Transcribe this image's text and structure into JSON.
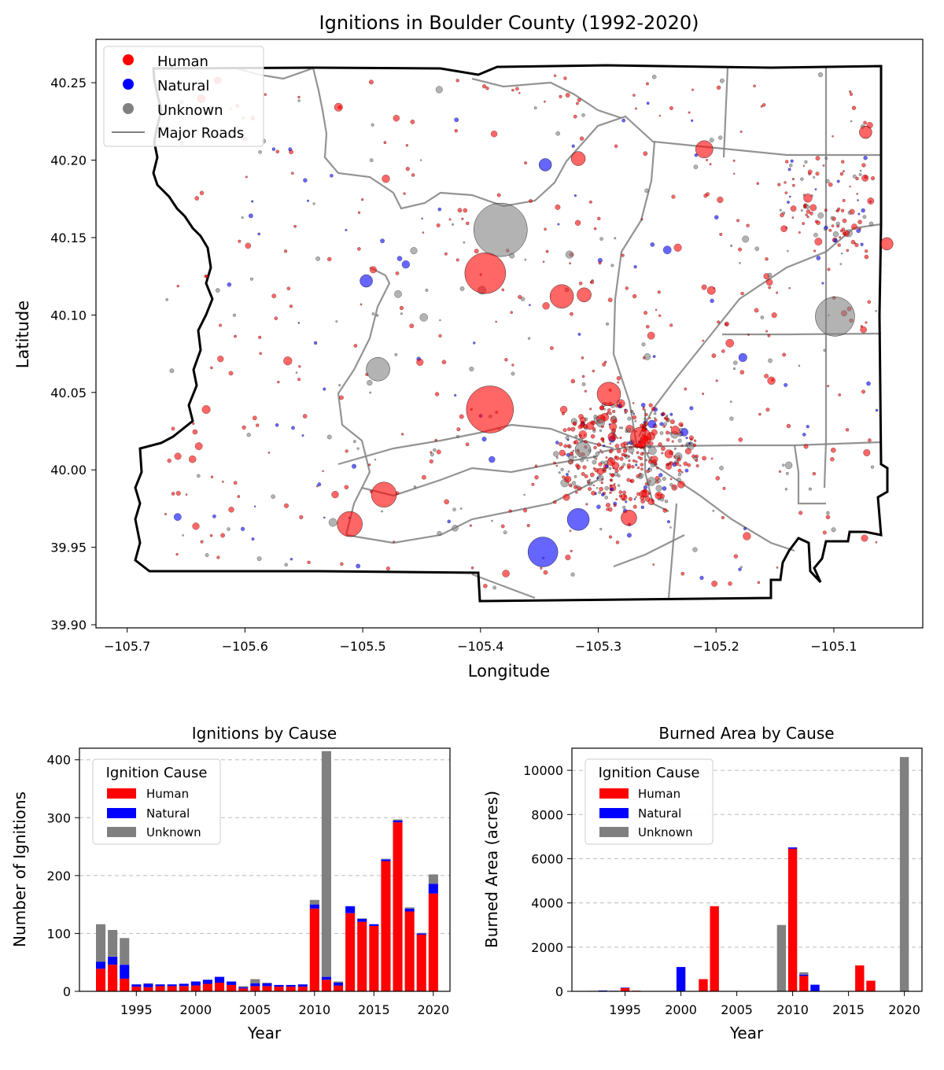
{
  "colors": {
    "human": "#ff0000",
    "natural": "#0000ff",
    "unknown": "#808080",
    "roads": "#808080",
    "boundary": "#000000"
  },
  "map": {
    "title": "Ignitions in Boulder County (1992-2020)",
    "xlabel": "Longitude",
    "ylabel": "Latitude",
    "xlim": [
      -105.7265,
      -105.0245
    ],
    "ylim": [
      39.898,
      40.278
    ],
    "xticks": [
      "−105.7",
      "−105.6",
      "−105.5",
      "−105.4",
      "−105.3",
      "−105.2",
      "−105.1"
    ],
    "xtick_values": [
      -105.7,
      -105.6,
      -105.5,
      -105.4,
      -105.3,
      -105.2,
      -105.1
    ],
    "yticks": [
      "39.90",
      "39.95",
      "40.00",
      "40.05",
      "40.10",
      "40.15",
      "40.20",
      "40.25"
    ],
    "ytick_values": [
      39.9,
      39.95,
      40.0,
      40.05,
      40.1,
      40.15,
      40.2,
      40.25
    ],
    "legend": [
      {
        "label": "Human",
        "kind": "marker",
        "color": "#ff0000"
      },
      {
        "label": "Natural",
        "kind": "marker",
        "color": "#0000ff"
      },
      {
        "label": "Unknown",
        "kind": "marker",
        "color": "#808080"
      },
      {
        "label": "Major Roads",
        "kind": "line",
        "color": "#808080"
      }
    ],
    "large_ignitions": [
      {
        "lon": -105.383,
        "lat": 40.155,
        "cause": "Unknown",
        "size": 34
      },
      {
        "lon": -105.396,
        "lat": 40.127,
        "cause": "Human",
        "size": 26
      },
      {
        "lon": -105.392,
        "lat": 40.039,
        "cause": "Human",
        "size": 30
      },
      {
        "lon": -105.099,
        "lat": 40.099,
        "cause": "Unknown",
        "size": 25
      },
      {
        "lon": -105.482,
        "lat": 39.984,
        "cause": "Human",
        "size": 16
      },
      {
        "lon": -105.511,
        "lat": 39.965,
        "cause": "Human",
        "size": 16
      },
      {
        "lon": -105.347,
        "lat": 39.947,
        "cause": "Natural",
        "size": 19
      },
      {
        "lon": -105.291,
        "lat": 40.049,
        "cause": "Human",
        "size": 15
      },
      {
        "lon": -105.331,
        "lat": 40.112,
        "cause": "Human",
        "size": 15
      },
      {
        "lon": -105.487,
        "lat": 40.065,
        "cause": "Unknown",
        "size": 15
      },
      {
        "lon": -105.317,
        "lat": 39.968,
        "cause": "Natural",
        "size": 14
      },
      {
        "lon": -105.21,
        "lat": 40.207,
        "cause": "Human",
        "size": 11
      },
      {
        "lon": -105.264,
        "lat": 40.021,
        "cause": "Human",
        "size": 13
      },
      {
        "lon": -105.274,
        "lat": 39.969,
        "cause": "Human",
        "size": 10
      },
      {
        "lon": -105.312,
        "lat": 40.113,
        "cause": "Human",
        "size": 9
      },
      {
        "lon": -105.317,
        "lat": 40.201,
        "cause": "Human",
        "size": 9
      },
      {
        "lon": -105.313,
        "lat": 40.013,
        "cause": "Unknown",
        "size": 10
      },
      {
        "lon": -105.497,
        "lat": 40.122,
        "cause": "Natural",
        "size": 8
      },
      {
        "lon": -105.055,
        "lat": 40.146,
        "cause": "Human",
        "size": 8
      },
      {
        "lon": -105.073,
        "lat": 40.218,
        "cause": "Human",
        "size": 8
      },
      {
        "lon": -105.345,
        "lat": 40.197,
        "cause": "Natural",
        "size": 8
      }
    ]
  },
  "ignitions_chart": {
    "title": "Ignitions by Cause",
    "xlabel": "Year",
    "ylabel": "Number of Ignitions",
    "ylim": [
      0,
      420
    ],
    "yticks": [
      "0",
      "100",
      "200",
      "300",
      "400"
    ],
    "ytick_values": [
      0,
      100,
      200,
      300,
      400
    ],
    "xticks": [
      "1995",
      "2000",
      "2005",
      "2010",
      "2015",
      "2020"
    ],
    "xtick_values": [
      1995,
      2000,
      2005,
      2010,
      2015,
      2020
    ],
    "legend_title": "Ignition Cause",
    "legend": [
      "Human",
      "Natural",
      "Unknown"
    ]
  },
  "burned_chart": {
    "title": "Burned Area by Cause",
    "xlabel": "Year",
    "ylabel": "Burned Area (acres)",
    "ylim": [
      0,
      11000
    ],
    "yticks": [
      "0",
      "2000",
      "4000",
      "6000",
      "8000",
      "10000"
    ],
    "ytick_values": [
      0,
      2000,
      4000,
      6000,
      8000,
      10000
    ],
    "xticks": [
      "1995",
      "2000",
      "2005",
      "2010",
      "2015",
      "2020"
    ],
    "xtick_values": [
      1995,
      2000,
      2005,
      2010,
      2015,
      2020
    ],
    "legend_title": "Ignition Cause",
    "legend": [
      "Human",
      "Natural",
      "Unknown"
    ]
  },
  "chart_data": [
    {
      "type": "scatter",
      "title": "Ignitions in Boulder County (1992-2020)",
      "xlabel": "Longitude",
      "ylabel": "Latitude",
      "xlim": [
        -105.7265,
        -105.0245
      ],
      "ylim": [
        39.898,
        40.278
      ],
      "series": [
        "Human",
        "Natural",
        "Unknown"
      ],
      "legend_position": "top-left",
      "grid": false
    },
    {
      "type": "bar",
      "stacked": true,
      "title": "Ignitions by Cause",
      "xlabel": "Year",
      "ylabel": "Number of Ignitions",
      "ylim": [
        0,
        420
      ],
      "grid": "y-dashed",
      "legend_position": "top-left",
      "categories": [
        1992,
        1993,
        1994,
        1995,
        1996,
        1997,
        1998,
        1999,
        2000,
        2001,
        2002,
        2003,
        2004,
        2005,
        2006,
        2007,
        2008,
        2009,
        2010,
        2011,
        2012,
        2013,
        2014,
        2015,
        2016,
        2017,
        2018,
        2019,
        2020
      ],
      "series": [
        {
          "name": "Human",
          "values": [
            39,
            46,
            22,
            8,
            7,
            9,
            9,
            9,
            10,
            13,
            15,
            11,
            5,
            9,
            9,
            8,
            8,
            8,
            143,
            20,
            10,
            135,
            120,
            113,
            225,
            292,
            138,
            98,
            169
          ]
        },
        {
          "name": "Natural",
          "values": [
            12,
            14,
            24,
            4,
            6,
            3,
            3,
            4,
            7,
            7,
            10,
            6,
            2,
            5,
            5,
            3,
            3,
            4,
            7,
            5,
            5,
            12,
            5,
            3,
            3,
            3,
            5,
            2,
            17
          ]
        },
        {
          "name": "Unknown",
          "values": [
            65,
            46,
            46,
            0,
            1,
            0,
            0,
            0,
            0,
            0,
            0,
            0,
            2,
            7,
            1,
            0,
            0,
            0,
            8,
            390,
            2,
            0,
            1,
            0,
            1,
            2,
            2,
            1,
            16
          ]
        }
      ]
    },
    {
      "type": "bar",
      "stacked": true,
      "title": "Burned Area by Cause",
      "xlabel": "Year",
      "ylabel": "Burned Area (acres)",
      "ylim": [
        0,
        11000
      ],
      "grid": "y-dashed",
      "legend_position": "top-left",
      "categories": [
        1992,
        1993,
        1994,
        1995,
        1996,
        1997,
        1998,
        1999,
        2000,
        2001,
        2002,
        2003,
        2004,
        2005,
        2006,
        2007,
        2008,
        2009,
        2010,
        2011,
        2012,
        2013,
        2014,
        2015,
        2016,
        2017,
        2018,
        2019,
        2020
      ],
      "series": [
        {
          "name": "Human",
          "values": [
            10,
            20,
            15,
            150,
            30,
            0,
            0,
            0,
            0,
            0,
            550,
            3850,
            0,
            0,
            0,
            0,
            0,
            0,
            6450,
            700,
            0,
            0,
            0,
            0,
            1170,
            480,
            0,
            0,
            0
          ]
        },
        {
          "name": "Natural",
          "values": [
            0,
            20,
            10,
            20,
            0,
            0,
            0,
            0,
            1100,
            0,
            0,
            0,
            0,
            0,
            0,
            0,
            0,
            0,
            60,
            60,
            300,
            0,
            0,
            0,
            0,
            0,
            0,
            0,
            0
          ]
        },
        {
          "name": "Unknown",
          "values": [
            10,
            0,
            0,
            0,
            0,
            0,
            0,
            0,
            0,
            0,
            0,
            0,
            0,
            0,
            0,
            0,
            0,
            3000,
            0,
            100,
            0,
            0,
            0,
            0,
            0,
            0,
            0,
            0,
            10600
          ]
        }
      ]
    }
  ]
}
